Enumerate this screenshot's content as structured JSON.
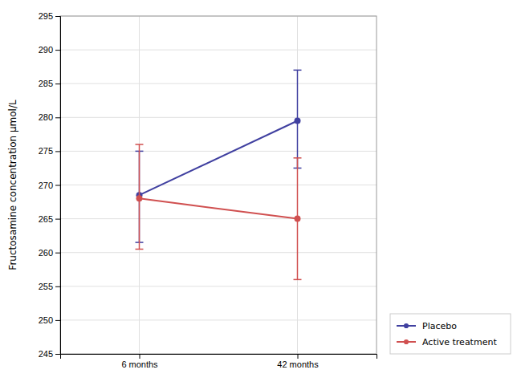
{
  "chart_data": {
    "type": "line",
    "categories": [
      "6 months",
      "42 months"
    ],
    "series": [
      {
        "name": "Placebo",
        "color": "#4040a0",
        "values": [
          268.5,
          279.5
        ],
        "upper": [
          275.0,
          287.0
        ],
        "lower": [
          261.5,
          272.5
        ]
      },
      {
        "name": "Active treatment",
        "color": "#d05050",
        "values": [
          268.0,
          265.0
        ],
        "upper": [
          276.0,
          274.0
        ],
        "lower": [
          260.5,
          256.0
        ]
      }
    ],
    "y_label": "Fructosamine concentration μmol/L",
    "ylim": [
      245,
      295
    ],
    "yticks": [
      245,
      250,
      255,
      260,
      265,
      270,
      275,
      280,
      285,
      290,
      295
    ],
    "grid": true,
    "legend": "lower right",
    "marker": "circle"
  }
}
